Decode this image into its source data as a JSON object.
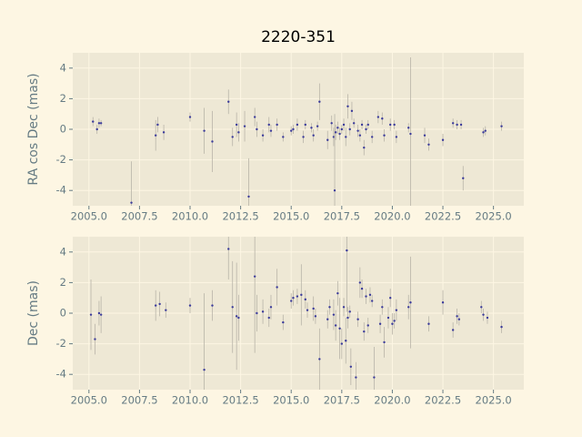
{
  "chart_data": [
    {
      "type": "scatter",
      "title": "2220-351",
      "ylabel": "RA cos Dec (mas)",
      "color": "#3a3a9a",
      "error_color": "#b8b4a8",
      "grid": true,
      "xlim": [
        2004.2,
        2026.5
      ],
      "ylim": [
        -5,
        5
      ],
      "xticks": [
        {
          "value": 2005,
          "label": "2005.0"
        },
        {
          "value": 2007.5,
          "label": "2007.5"
        },
        {
          "value": 2010,
          "label": "2010.0"
        },
        {
          "value": 2012.5,
          "label": "2012.5"
        },
        {
          "value": 2015,
          "label": "2015.0"
        },
        {
          "value": 2017.5,
          "label": "2017.5"
        },
        {
          "value": 2020,
          "label": "2020.0"
        },
        {
          "value": 2022.5,
          "label": "2022.5"
        },
        {
          "value": 2025,
          "label": "2025.0"
        }
      ],
      "yticks": [
        -4,
        -2,
        0,
        2,
        4
      ],
      "x": [
        2005.2,
        2005.4,
        2005.5,
        2005.6,
        2007.1,
        2008.3,
        2008.4,
        2008.7,
        2010.0,
        2010.7,
        2011.1,
        2011.9,
        2012.1,
        2012.3,
        2012.4,
        2012.7,
        2012.9,
        2013.2,
        2013.3,
        2013.6,
        2013.9,
        2014.0,
        2014.3,
        2014.6,
        2015.0,
        2015.1,
        2015.3,
        2015.6,
        2015.7,
        2016.0,
        2016.1,
        2016.3,
        2016.4,
        2016.8,
        2017.0,
        2017.1,
        2017.15,
        2017.2,
        2017.3,
        2017.4,
        2017.5,
        2017.6,
        2017.7,
        2017.8,
        2017.9,
        2018.0,
        2018.1,
        2018.3,
        2018.4,
        2018.5,
        2018.6,
        2018.7,
        2018.8,
        2019.0,
        2019.3,
        2019.5,
        2019.6,
        2019.9,
        2020.1,
        2020.2,
        2020.8,
        2020.9,
        2021.6,
        2021.8,
        2022.5,
        2023.0,
        2023.2,
        2023.4,
        2023.5,
        2024.5,
        2024.6,
        2025.4
      ],
      "values": [
        0.5,
        0.0,
        0.4,
        0.4,
        -4.8,
        -0.4,
        0.3,
        -0.2,
        0.8,
        -0.1,
        -0.8,
        1.8,
        -0.5,
        0.3,
        -0.2,
        0.2,
        -4.4,
        0.8,
        0.0,
        -0.4,
        0.3,
        -0.1,
        0.3,
        -0.5,
        -0.1,
        0.0,
        0.3,
        -0.5,
        0.3,
        0.1,
        -0.4,
        0.2,
        1.8,
        -0.7,
        0.4,
        -0.5,
        -4.0,
        -0.2,
        0.1,
        -0.3,
        0.0,
        0.3,
        -0.5,
        1.5,
        0.0,
        1.2,
        0.4,
        -0.1,
        -0.4,
        0.3,
        -1.2,
        0.0,
        0.3,
        -0.5,
        0.8,
        0.7,
        -0.4,
        0.3,
        0.3,
        -0.5,
        0.1,
        -0.3,
        -0.4,
        -1.0,
        -0.7,
        0.4,
        0.3,
        0.3,
        -3.2,
        -0.2,
        -0.1,
        0.2
      ],
      "errors": [
        0.3,
        0.3,
        0.3,
        0.2,
        2.7,
        1.0,
        0.5,
        0.5,
        0.3,
        1.5,
        2.0,
        0.8,
        0.6,
        0.8,
        0.6,
        1.0,
        2.5,
        0.6,
        0.5,
        0.4,
        0.5,
        0.4,
        0.4,
        0.3,
        0.3,
        0.3,
        0.4,
        0.4,
        0.3,
        0.3,
        0.4,
        0.3,
        1.2,
        0.6,
        0.5,
        0.6,
        5.0,
        0.5,
        0.4,
        0.4,
        0.3,
        0.4,
        0.6,
        0.8,
        0.4,
        0.6,
        0.3,
        0.4,
        0.4,
        0.3,
        0.5,
        0.3,
        0.3,
        0.4,
        0.4,
        0.4,
        0.4,
        0.4,
        0.3,
        0.4,
        0.3,
        5.0,
        0.5,
        0.4,
        0.4,
        0.3,
        0.3,
        0.3,
        0.8,
        0.3,
        0.3,
        0.3
      ]
    },
    {
      "type": "scatter",
      "ylabel": "Dec (mas)",
      "color": "#3a3a9a",
      "error_color": "#b8b4a8",
      "grid": true,
      "xlim": [
        2004.2,
        2026.5
      ],
      "ylim": [
        -5,
        5
      ],
      "xticks": [
        {
          "value": 2005,
          "label": "2005.0"
        },
        {
          "value": 2007.5,
          "label": "2007.5"
        },
        {
          "value": 2010,
          "label": "2010.0"
        },
        {
          "value": 2012.5,
          "label": "2012.5"
        },
        {
          "value": 2015,
          "label": "2015.0"
        },
        {
          "value": 2017.5,
          "label": "2017.5"
        },
        {
          "value": 2020,
          "label": "2020.0"
        },
        {
          "value": 2022.5,
          "label": "2022.5"
        },
        {
          "value": 2025,
          "label": "2025.0"
        }
      ],
      "yticks": [
        -4,
        -2,
        0,
        2,
        4
      ],
      "x": [
        2005.1,
        2005.3,
        2005.5,
        2005.6,
        2008.3,
        2008.5,
        2008.8,
        2010.0,
        2010.7,
        2011.1,
        2011.9,
        2012.1,
        2012.3,
        2012.4,
        2013.2,
        2013.3,
        2013.6,
        2013.9,
        2014.0,
        2014.3,
        2014.6,
        2015.0,
        2015.1,
        2015.3,
        2015.5,
        2015.7,
        2015.8,
        2016.1,
        2016.2,
        2016.4,
        2016.8,
        2016.9,
        2017.1,
        2017.2,
        2017.3,
        2017.4,
        2017.5,
        2017.6,
        2017.7,
        2017.75,
        2017.8,
        2017.9,
        2017.95,
        2018.2,
        2018.3,
        2018.4,
        2018.5,
        2018.6,
        2018.7,
        2018.8,
        2018.9,
        2019.0,
        2019.1,
        2019.4,
        2019.5,
        2019.6,
        2019.8,
        2019.9,
        2020.0,
        2020.1,
        2020.2,
        2020.8,
        2020.9,
        2021.8,
        2022.5,
        2023.0,
        2023.2,
        2023.3,
        2024.4,
        2024.5,
        2024.7,
        2025.4
      ],
      "values": [
        -0.1,
        -1.7,
        0.0,
        -0.1,
        0.5,
        0.6,
        0.2,
        0.5,
        -3.7,
        0.5,
        4.2,
        0.4,
        -0.2,
        -0.3,
        2.4,
        0.0,
        0.1,
        -0.3,
        0.4,
        1.7,
        -0.6,
        0.8,
        1.0,
        1.1,
        1.2,
        0.9,
        0.2,
        0.3,
        -0.2,
        -3.0,
        -0.4,
        0.4,
        -0.1,
        -0.8,
        1.3,
        -1.0,
        -2.0,
        0.4,
        -1.8,
        4.1,
        -0.3,
        0.1,
        -3.5,
        -4.2,
        -0.4,
        2.0,
        1.6,
        -1.2,
        1.1,
        -0.8,
        1.2,
        0.8,
        -4.2,
        -0.7,
        0.4,
        -1.9,
        -0.3,
        1.0,
        -0.7,
        -0.5,
        0.2,
        0.4,
        0.7,
        -0.7,
        0.7,
        -1.1,
        -0.2,
        -0.4,
        0.4,
        -0.1,
        -0.3,
        -0.9
      ],
      "errors": [
        2.3,
        1.0,
        0.8,
        1.2,
        1.0,
        0.8,
        0.5,
        0.5,
        5.0,
        1.0,
        2.0,
        3.0,
        3.5,
        1.5,
        5.0,
        1.2,
        0.8,
        0.6,
        0.8,
        1.2,
        0.5,
        0.5,
        0.5,
        0.5,
        2.0,
        0.6,
        0.5,
        0.8,
        0.5,
        2.0,
        0.6,
        0.5,
        1.0,
        1.0,
        0.8,
        2.0,
        1.0,
        0.6,
        1.5,
        4.0,
        0.7,
        0.4,
        1.2,
        1.0,
        0.5,
        1.0,
        0.6,
        0.6,
        0.5,
        0.5,
        0.5,
        0.4,
        2.0,
        0.6,
        0.5,
        1.0,
        0.7,
        0.6,
        0.7,
        0.5,
        0.7,
        0.8,
        3.0,
        0.5,
        0.8,
        0.5,
        0.5,
        0.4,
        0.4,
        0.4,
        0.4,
        0.4
      ]
    }
  ]
}
